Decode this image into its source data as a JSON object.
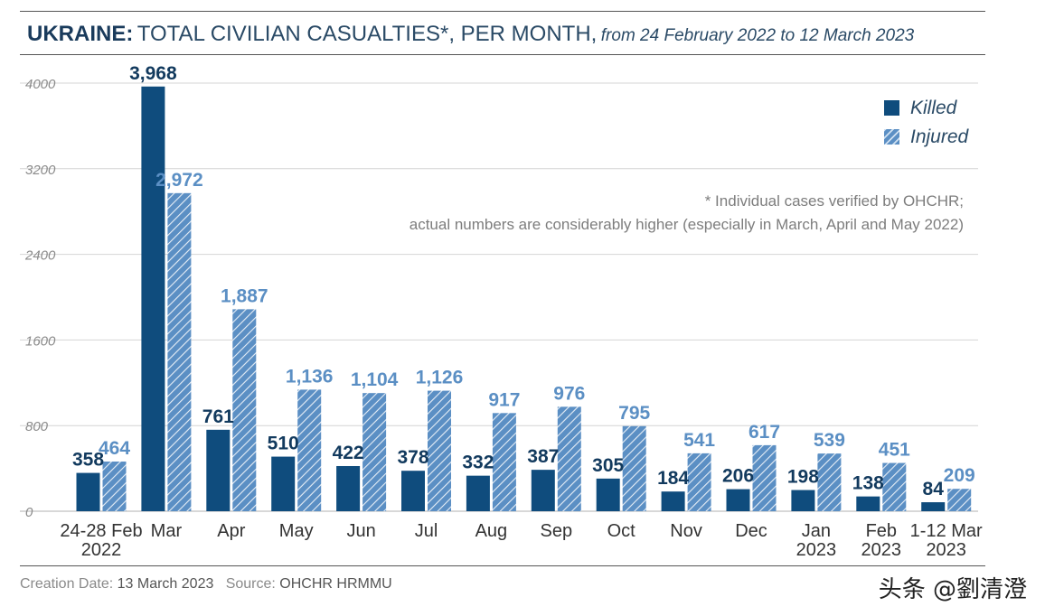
{
  "title": {
    "bold": "UKRAINE:",
    "main": "TOTAL CIVILIAN CASUALTIES*, PER MONTH,",
    "sub": "from 24 February 2022 to 12 March 2023"
  },
  "footnote": {
    "line1": "* Individual cases verified by OHCHR;",
    "line2": "actual numbers are considerably higher (especially in March, April and May 2022)"
  },
  "footer": {
    "creation_label": "Creation Date:",
    "creation_value": "13 March 2023",
    "source_label": "Source:",
    "source_value": "OHCHR HRMMU"
  },
  "watermark": "头条 @劉清澄",
  "colors": {
    "killed": "#0f4c7d",
    "injured": "#5b8fc4",
    "label_killed": "#123a5e",
    "label_injured": "#5b8fc4",
    "grid": "#d4d4d4"
  },
  "chart_data": {
    "type": "bar",
    "categories": [
      [
        "24-28 Feb",
        "2022"
      ],
      [
        "Mar"
      ],
      [
        "Apr"
      ],
      [
        "May"
      ],
      [
        "Jun"
      ],
      [
        "Jul"
      ],
      [
        "Aug"
      ],
      [
        "Sep"
      ],
      [
        "Oct"
      ],
      [
        "Nov"
      ],
      [
        "Dec"
      ],
      [
        "Jan",
        "2023"
      ],
      [
        "Feb",
        "2023"
      ],
      [
        "1-12 Mar",
        "2023"
      ]
    ],
    "series": [
      {
        "name": "Killed",
        "values": [
          358,
          3968,
          761,
          510,
          422,
          378,
          332,
          387,
          305,
          184,
          206,
          198,
          138,
          84
        ],
        "labels": [
          "358",
          "3,968",
          "761",
          "510",
          "422",
          "378",
          "332",
          "387",
          "305",
          "184",
          "206",
          "198",
          "138",
          "84"
        ]
      },
      {
        "name": "Injured",
        "values": [
          464,
          2972,
          1887,
          1136,
          1104,
          1126,
          917,
          976,
          795,
          541,
          617,
          539,
          451,
          209
        ],
        "labels": [
          "464",
          "2,972",
          "1,887",
          "1,136",
          "1,104",
          "1,126",
          "917",
          "976",
          "795",
          "541",
          "617",
          "539",
          "451",
          "209"
        ]
      }
    ],
    "yticks": [
      "0",
      "800",
      "1600",
      "2400",
      "3200",
      "4000"
    ],
    "ylim": [
      0,
      4000
    ],
    "grid": true,
    "legend_position": "top-right"
  }
}
